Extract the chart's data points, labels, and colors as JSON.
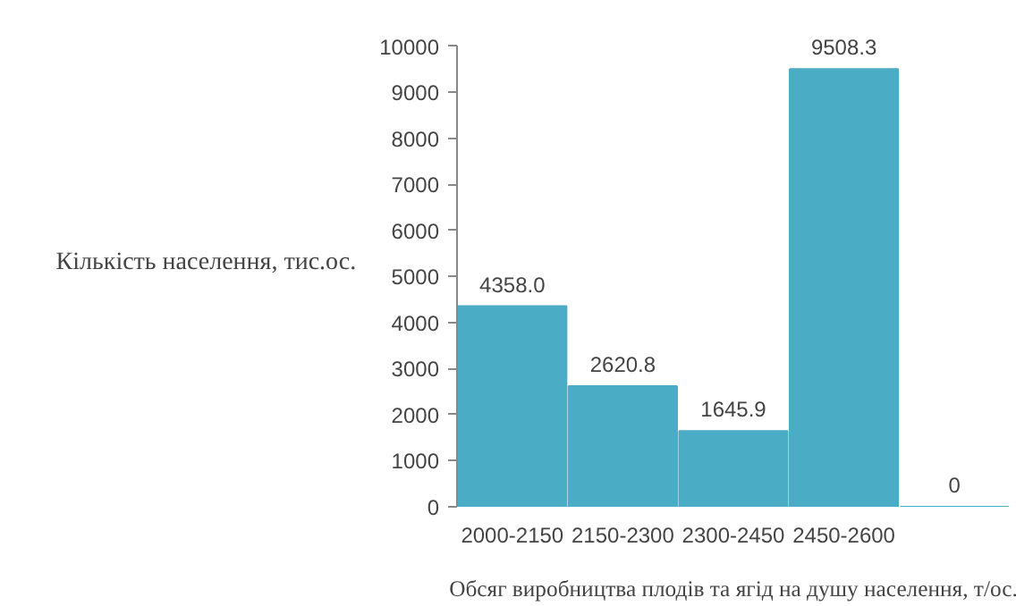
{
  "chart_data": {
    "type": "bar",
    "xlabel": "Обсяг виробництва плодів та ягід на душу населення, т/ос.",
    "ylabel": "Кількість населення, тис.ос.",
    "categories": [
      "2000-2150",
      "2150-2300",
      "2300-2450",
      "2450-2600",
      null
    ],
    "values": [
      4358.0,
      2620.8,
      1645.9,
      9508.3,
      0
    ],
    "value_labels": [
      "4358.0",
      "2620.8",
      "1645.9",
      "9508.3",
      "0"
    ],
    "color": "#4bacc6",
    "ylim": [
      0,
      10000
    ],
    "yticks": [
      0,
      1000,
      2000,
      3000,
      4000,
      5000,
      6000,
      7000,
      8000,
      9000,
      10000
    ],
    "grid": false
  }
}
